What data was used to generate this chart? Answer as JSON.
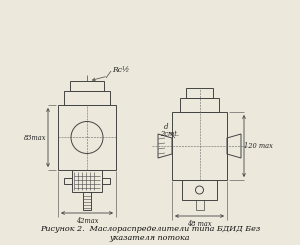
{
  "bg_color": "#ede8dc",
  "line_color": "#444444",
  "title_line1": "Рисунок 2.  Маслораспределители типа БДИД Без",
  "title_line2": "указателя потока",
  "label_rc": "Rc½",
  "label_d": "d",
  "label_2cmt": "2cmt.",
  "label_83": "83max",
  "label_120": "120 max",
  "label_42": "42max",
  "label_48": "48 max",
  "fig_width": 3.0,
  "fig_height": 2.45,
  "dpi": 100
}
